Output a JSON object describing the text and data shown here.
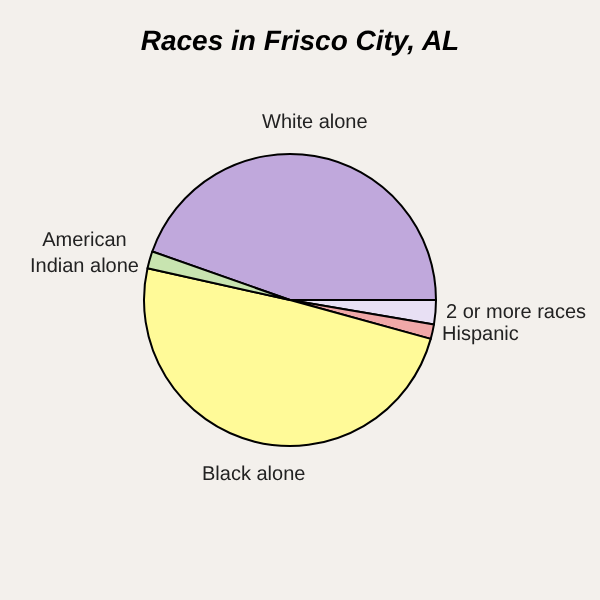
{
  "chart_data": {
    "type": "pie",
    "title": "Races in Frisco City, AL",
    "categories": [
      "White alone",
      "2 or more races",
      "Hispanic",
      "Black alone",
      "American Indian alone"
    ],
    "values": [
      44.6,
      2.7,
      1.6,
      49.2,
      1.9
    ],
    "colors": [
      "#c0a8dc",
      "#e8e0f4",
      "#f0a8a8",
      "#fffa98",
      "#c8e4b0"
    ],
    "legend": false
  }
}
